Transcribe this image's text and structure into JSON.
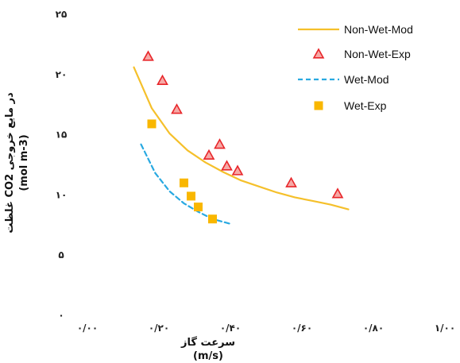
{
  "chart_data": {
    "type": "scatter",
    "xlabel_line1": "سرعت گاز",
    "xlabel_line2": "(m/s)",
    "ylabel_line1": "غلظت CO2 در مایع خروجی",
    "ylabel_line2": "(mol m-3)",
    "xlim": [
      0,
      1
    ],
    "ylim": [
      0,
      25
    ],
    "x_ticks": [
      0,
      0.2,
      0.4,
      0.6,
      0.8,
      1.0
    ],
    "x_tick_labels": [
      "۰/۰۰",
      "۰/۲۰",
      "۰/۴۰",
      "۰/۶۰",
      "۰/۸۰",
      "۱/۰۰"
    ],
    "y_ticks": [
      0,
      5,
      10,
      15,
      20,
      25
    ],
    "y_tick_labels": [
      "۰",
      "۵",
      "۱۰",
      "۱۵",
      "۲۰",
      "۲۵"
    ],
    "legend_position": "top-right",
    "grid": false,
    "series": [
      {
        "name": "Non-Wet-Mod",
        "kind": "line",
        "style": "solid",
        "color": "#F5C02B",
        "x": [
          0.13,
          0.18,
          0.23,
          0.28,
          0.33,
          0.38,
          0.43,
          0.48,
          0.53,
          0.58,
          0.63,
          0.68,
          0.73
        ],
        "y": [
          20.6,
          17.2,
          15.1,
          13.7,
          12.7,
          11.9,
          11.2,
          10.7,
          10.2,
          9.8,
          9.5,
          9.2,
          8.8
        ]
      },
      {
        "name": "Non-Wet-Exp",
        "kind": "scatter",
        "marker": "triangle",
        "color": "#E8262A",
        "x": [
          0.17,
          0.21,
          0.25,
          0.34,
          0.37,
          0.39,
          0.42,
          0.57,
          0.7
        ],
        "y": [
          21.5,
          19.5,
          17.1,
          13.3,
          14.2,
          12.4,
          12.0,
          11.0,
          10.1
        ]
      },
      {
        "name": "Wet-Mod",
        "kind": "line",
        "style": "dashed",
        "color": "#29A9E1",
        "x": [
          0.15,
          0.19,
          0.23,
          0.27,
          0.31,
          0.35,
          0.4
        ],
        "y": [
          14.2,
          11.8,
          10.3,
          9.3,
          8.6,
          8.0,
          7.6
        ]
      },
      {
        "name": "Wet-Exp",
        "kind": "scatter",
        "marker": "square",
        "color": "#F9B700",
        "x": [
          0.18,
          0.27,
          0.29,
          0.31,
          0.35
        ],
        "y": [
          15.9,
          11.0,
          9.9,
          9.0,
          8.0
        ]
      }
    ]
  }
}
